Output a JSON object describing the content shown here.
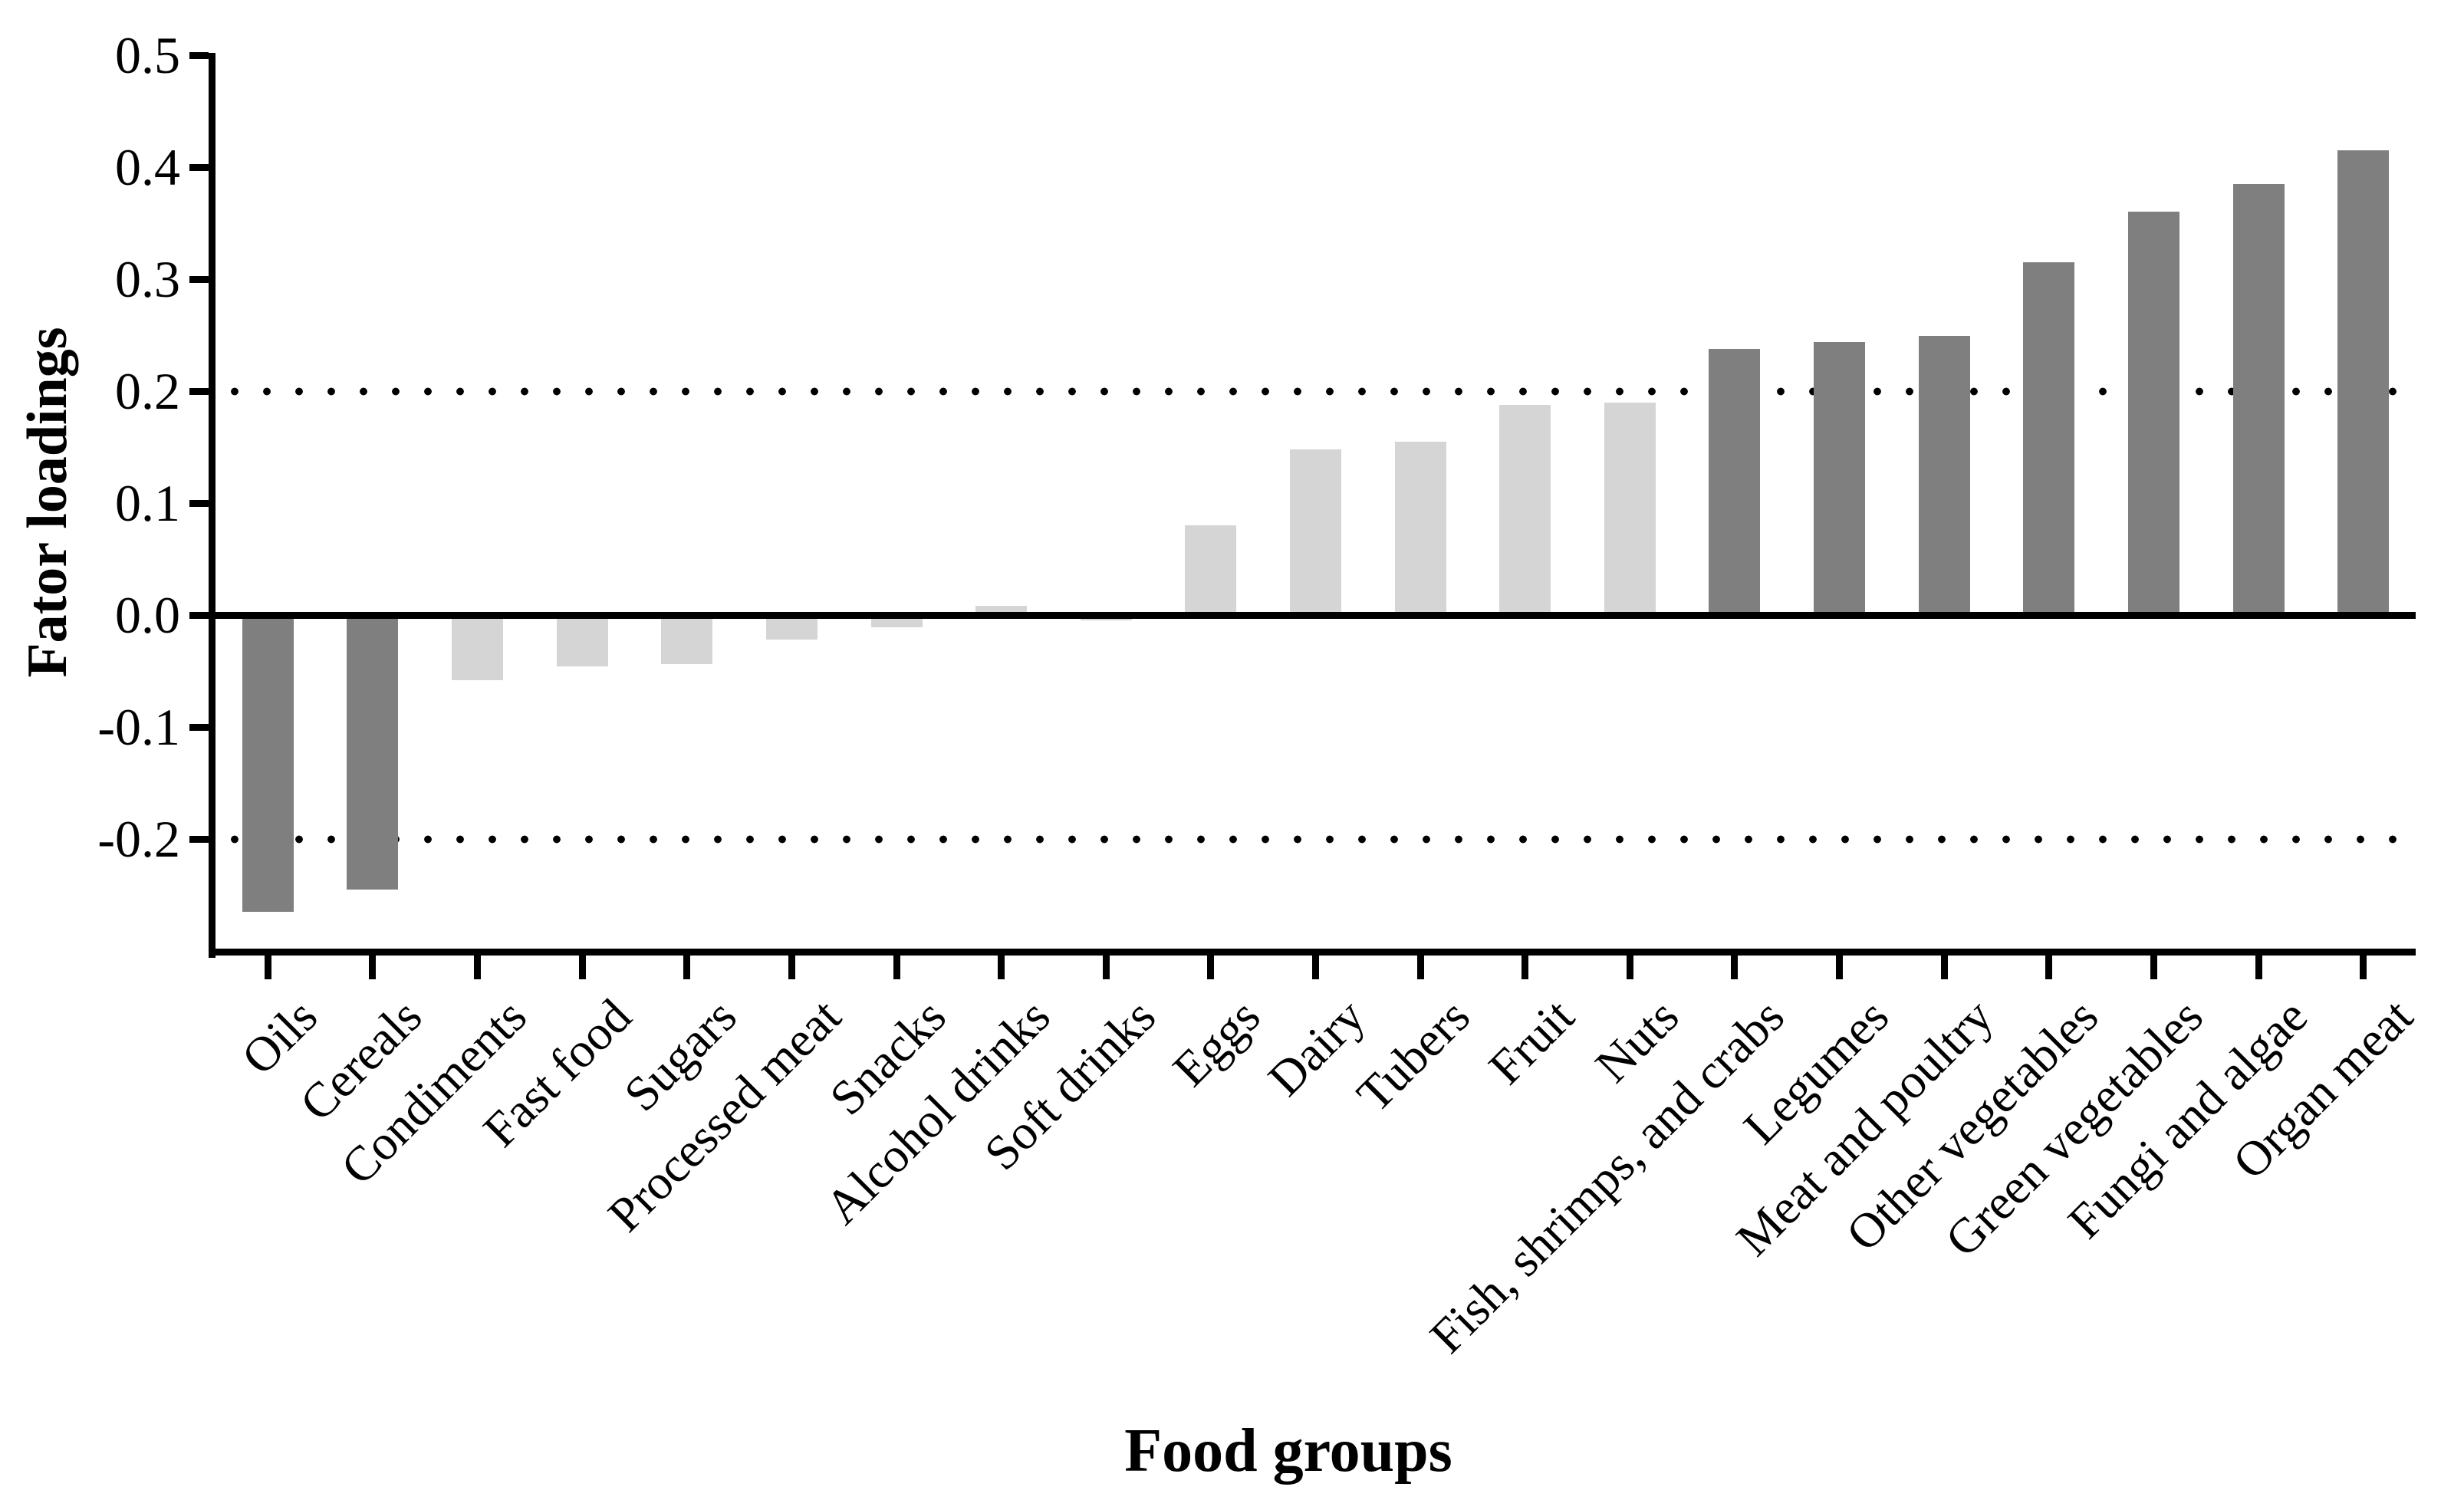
{
  "chart_data": {
    "type": "bar",
    "title": "",
    "xlabel": "Food groups",
    "ylabel": "Fator loadings",
    "ylim": [
      -0.3,
      0.5
    ],
    "yticks": [
      0.5,
      0.4,
      0.3,
      0.2,
      0.1,
      0.0,
      -0.1,
      -0.2
    ],
    "ytick_labels": [
      "0.5",
      "0.4",
      "0.3",
      "0.2",
      "0.1",
      "0.0",
      "-0.1",
      "-0.2"
    ],
    "reference_lines": {
      "upper": 0.2,
      "lower": -0.2,
      "style": "dotted"
    },
    "zero_line": 0.0,
    "grid": false,
    "legend": false,
    "bar_colors": {
      "dark": "#7f7f7f",
      "light": "#d5d5d5"
    },
    "categories": [
      {
        "label": "Oils",
        "value": -0.265,
        "shade": "dark"
      },
      {
        "label": "Cereals",
        "value": -0.245,
        "shade": "dark"
      },
      {
        "label": "Condiments",
        "value": -0.058,
        "shade": "light"
      },
      {
        "label": "Fast food",
        "value": -0.046,
        "shade": "light"
      },
      {
        "label": "Sugars",
        "value": -0.044,
        "shade": "light"
      },
      {
        "label": "Processed meat",
        "value": -0.022,
        "shade": "light"
      },
      {
        "label": "Snacks",
        "value": -0.011,
        "shade": "light"
      },
      {
        "label": "Alcohol drinks",
        "value": 0.008,
        "shade": "light"
      },
      {
        "label": "Soft drinks",
        "value": -0.005,
        "shade": "light"
      },
      {
        "label": "Eggs",
        "value": 0.08,
        "shade": "light"
      },
      {
        "label": "Dairy",
        "value": 0.148,
        "shade": "light"
      },
      {
        "label": "Tubers",
        "value": 0.155,
        "shade": "light"
      },
      {
        "label": "Fruit",
        "value": 0.188,
        "shade": "light"
      },
      {
        "label": "Nuts",
        "value": 0.19,
        "shade": "light"
      },
      {
        "label": "Fish, shrimps, and crabs",
        "value": 0.238,
        "shade": "dark"
      },
      {
        "label": "Legumes",
        "value": 0.244,
        "shade": "dark"
      },
      {
        "label": "Meat and poultry",
        "value": 0.249,
        "shade": "dark"
      },
      {
        "label": "Other vegetables",
        "value": 0.315,
        "shade": "dark"
      },
      {
        "label": "Green vegetables",
        "value": 0.36,
        "shade": "dark"
      },
      {
        "label": "Fungi and algae",
        "value": 0.385,
        "shade": "dark"
      },
      {
        "label": "Organ meat",
        "value": 0.415,
        "shade": "dark"
      }
    ]
  }
}
